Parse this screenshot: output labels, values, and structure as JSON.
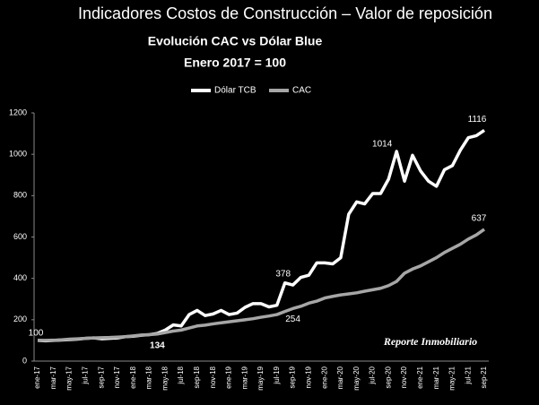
{
  "header": "Indicadores Costos de Construcción – Valor de reposición",
  "chart_data": {
    "type": "line",
    "title": "Evolución CAC vs Dólar Blue",
    "subtitle": "Enero 2017 = 100",
    "watermark": "Reporte Inmobiliario",
    "categories": [
      "ene-17",
      null,
      "mar-17",
      null,
      "may-17",
      null,
      "jul-17",
      null,
      "sep-17",
      null,
      "nov-17",
      null,
      "ene-18",
      null,
      "mar-18",
      null,
      "may-18",
      null,
      "jul-18",
      null,
      "sep-18",
      null,
      "nov-18",
      null,
      "ene-19",
      null,
      "mar-19",
      null,
      "may-19",
      null,
      "jul-19",
      null,
      "sep-19",
      null,
      "nov-19",
      null,
      "ene-20",
      null,
      "mar-20",
      null,
      "may-20",
      null,
      "jul-20",
      null,
      "sep-20",
      null,
      "nov-20",
      null,
      "ene-21",
      null,
      "mar-21",
      null,
      "may-21",
      null,
      "jul-21",
      null,
      "sep-21"
    ],
    "series": [
      {
        "name": "Dólar TCB",
        "color": "#ffffff",
        "values": [
          100,
          98,
          100,
          102,
          104,
          106,
          110,
          112,
          108,
          110,
          112,
          118,
          120,
          125,
          128,
          134,
          150,
          175,
          170,
          225,
          245,
          220,
          228,
          245,
          225,
          232,
          260,
          278,
          278,
          262,
          270,
          378,
          368,
          405,
          415,
          475,
          475,
          470,
          500,
          710,
          770,
          760,
          810,
          810,
          880,
          1014,
          870,
          995,
          920,
          870,
          845,
          925,
          945,
          1020,
          1080,
          1090,
          1116
        ],
        "value_labels": [
          "100",
          null,
          null,
          null,
          null,
          null,
          null,
          null,
          null,
          null,
          null,
          null,
          null,
          null,
          null,
          "134",
          null,
          null,
          null,
          null,
          null,
          null,
          null,
          null,
          null,
          null,
          null,
          null,
          null,
          null,
          null,
          "378",
          null,
          null,
          null,
          null,
          null,
          null,
          null,
          null,
          null,
          null,
          null,
          null,
          null,
          "1014",
          null,
          null,
          null,
          null,
          null,
          null,
          null,
          null,
          null,
          null,
          "1116"
        ]
      },
      {
        "name": "CAC",
        "color": "#a6a6a6",
        "values": [
          100,
          100,
          101,
          103,
          106,
          108,
          110,
          112,
          113,
          114,
          116,
          118,
          122,
          126,
          128,
          131,
          138,
          145,
          150,
          160,
          170,
          174,
          180,
          185,
          190,
          195,
          200,
          205,
          212,
          218,
          225,
          240,
          254,
          265,
          280,
          290,
          305,
          313,
          320,
          325,
          330,
          338,
          345,
          352,
          365,
          385,
          425,
          445,
          460,
          480,
          500,
          525,
          545,
          565,
          590,
          610,
          637
        ],
        "value_labels": [
          null,
          null,
          null,
          null,
          null,
          null,
          null,
          null,
          null,
          null,
          null,
          null,
          null,
          null,
          null,
          null,
          null,
          null,
          null,
          null,
          null,
          null,
          null,
          null,
          null,
          null,
          null,
          null,
          null,
          null,
          null,
          null,
          "254",
          null,
          null,
          null,
          null,
          null,
          null,
          null,
          null,
          null,
          null,
          null,
          null,
          null,
          null,
          null,
          null,
          null,
          null,
          null,
          null,
          null,
          null,
          null,
          "637"
        ]
      }
    ],
    "ylim": [
      0,
      1200
    ],
    "yticks": [
      0,
      200,
      400,
      600,
      800,
      1000,
      1200
    ],
    "grid": false
  }
}
